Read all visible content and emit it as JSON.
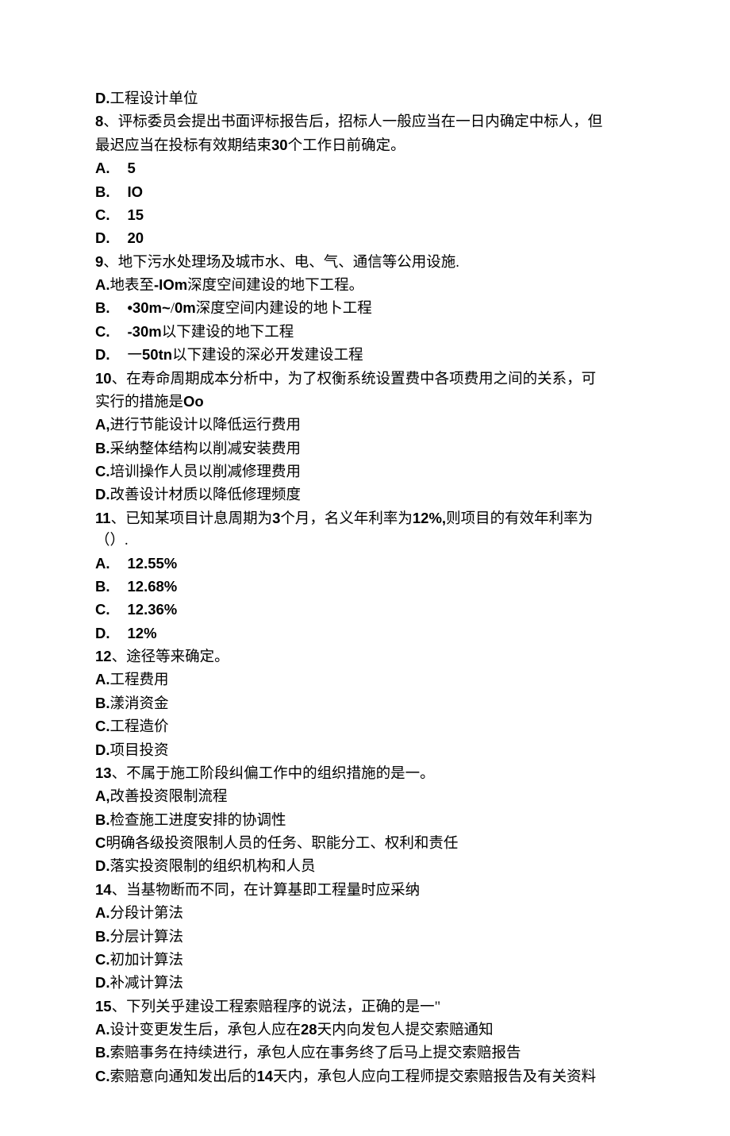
{
  "q7": {
    "optD": {
      "letter": "D.",
      "text": "工程设计单位"
    }
  },
  "q8": {
    "num": "8",
    "stem1": "、评标委员会提出书面评标报告后，招标人一般应当在一日内确定中标人，但",
    "stem2a": "最迟应当在投标有效期结束",
    "stem2b": "30",
    "stem2c": "个工作日前确定。",
    "optA": {
      "letter": "A.",
      "text": "5"
    },
    "optB": {
      "letter": "B.",
      "text": "IO"
    },
    "optC": {
      "letter": "C.",
      "text": "15"
    },
    "optD": {
      "letter": "D.",
      "text": "20"
    }
  },
  "q9": {
    "num": "9",
    "stem": "、地下污水处理场及城市水、电、气、通信等公用设施.",
    "optA": {
      "letter": "A.",
      "textA": "地表至",
      "textB": "-IOm",
      "textC": "深度空间建设的地下工程。"
    },
    "optB": {
      "letter": "B.",
      "textA": "•30m~",
      "textB": "/",
      "textC": "0m",
      "textD": "深度空间内建设的地卜工程"
    },
    "optC": {
      "letter": "C.",
      "textA": "-30m",
      "textB": "以下建设的地下工程"
    },
    "optD": {
      "letter": "D.",
      "textA": "一",
      "textB": "50tn",
      "textC": "以下建设的深必开发建设工程"
    }
  },
  "q10": {
    "num": "10",
    "stem1": "、在寿命周期成本分析中，为了权衡系统设置费中各项费用之间的关系，可",
    "stem2a": "实行的措施是",
    "stem2b": "Oo",
    "optA": {
      "letter": "A,",
      "text": "进行节能设计以降低运行费用"
    },
    "optB": {
      "letter": "B.",
      "text": "采纳整体结构以削减安装费用"
    },
    "optC": {
      "letter": "C.",
      "text": "培训操作人员以削减修理费用"
    },
    "optD": {
      "letter": "D.",
      "text": "改善设计材质以降低修理频度"
    }
  },
  "q11": {
    "num": "11",
    "stem1a": "、已知某项目计息周期为",
    "stem1b": "3",
    "stem1c": "个月，名义年利率为",
    "stem1d": "12%,",
    "stem1e": "则项目的有效年利率为",
    "stem2": "（）.",
    "optA": {
      "letter": "A.",
      "text": "12.55%"
    },
    "optB": {
      "letter": "B.",
      "text": "12.68%"
    },
    "optC": {
      "letter": "C.",
      "text": "12.36%"
    },
    "optD": {
      "letter": "D.",
      "text": "12%"
    }
  },
  "q12": {
    "num": "12",
    "stem": "、途径等来确定。",
    "optA": {
      "letter": "A.",
      "text": "工程费用"
    },
    "optB": {
      "letter": "B.",
      "text": "漾消资金"
    },
    "optC": {
      "letter": "C.",
      "text": "工程造价"
    },
    "optD": {
      "letter": "D.",
      "text": "项目投资"
    }
  },
  "q13": {
    "num": "13",
    "stem": "、不属于施工阶段纠偏工作中的组织措施的是一。",
    "optA": {
      "letter": "A,",
      "text": "改善投资限制流程"
    },
    "optB": {
      "letter": "B.",
      "text": "检查施工进度安排的协调性"
    },
    "optC": {
      "letter": "C",
      "text": "明确各级投资限制人员的任务、职能分工、权利和责任"
    },
    "optD": {
      "letter": "D.",
      "text": "落实投资限制的组织机构和人员"
    }
  },
  "q14": {
    "num": "14",
    "stem": "、当基物断而不同，在计算基即工程量时应采纳",
    "optA": {
      "letter": "A.",
      "text": "分段计第法"
    },
    "optB": {
      "letter": "B.",
      "text": "分层计算法"
    },
    "optC": {
      "letter": "C.",
      "text": "初加计算法"
    },
    "optD": {
      "letter": "D.",
      "text": "补减计算法"
    }
  },
  "q15": {
    "num": "15",
    "stem": "、下列关乎建设工程索赔程序的说法，正确的是一\"",
    "optA": {
      "letter": "A.",
      "textA": "设计变更发生后，承包人应在",
      "textB": "28",
      "textC": "天内向发包人提交索赔通知"
    },
    "optB": {
      "letter": "B.",
      "text": "索赔事务在持续进行，承包人应在事务终了后马上提交索赔报告"
    },
    "optC": {
      "letter": "C.",
      "textA": "索赔意向通知发出后的",
      "textB": "14",
      "textC": "天内，承包人应向工程师提交索赔报告及有关资料"
    }
  }
}
